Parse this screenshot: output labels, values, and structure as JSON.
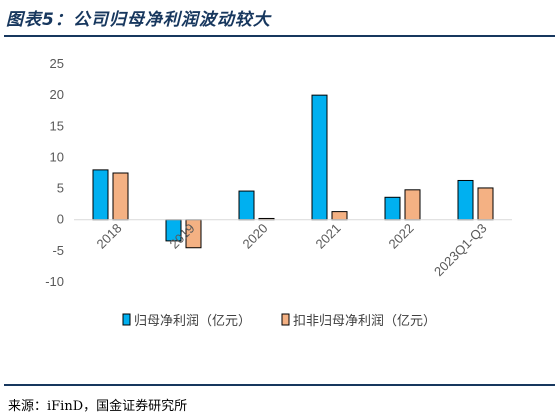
{
  "title": "图表5：公司归母净利润波动较大",
  "source": "来源：iFinD，国金证券研究所",
  "colors": {
    "series1": "#00b0f0",
    "series2": "#f4b183",
    "border": "#000000",
    "axis": "#d9d9d9",
    "rule": "#17375e"
  },
  "chart_data": {
    "type": "bar",
    "categories": [
      "2018",
      "2019",
      "2020",
      "2021",
      "2022",
      "2023Q1-Q3"
    ],
    "series": [
      {
        "name": "归母净利润（亿元）",
        "values": [
          8.0,
          -3.4,
          4.6,
          20.0,
          3.6,
          6.3
        ]
      },
      {
        "name": "扣非归母净利润（亿元）",
        "values": [
          7.5,
          -4.5,
          0.2,
          1.3,
          4.8,
          5.1
        ]
      }
    ],
    "ylim": [
      -10,
      25
    ],
    "yticks": [
      25,
      20,
      15,
      10,
      5,
      0,
      -5,
      -10
    ],
    "xlabel": "",
    "ylabel": "",
    "grid": false,
    "legend": "bottom"
  }
}
